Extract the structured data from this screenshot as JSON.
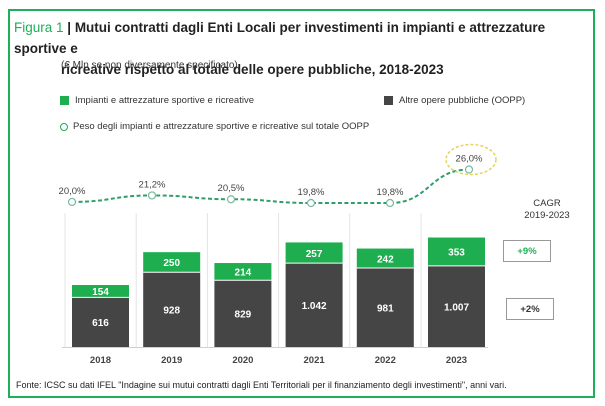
{
  "figure": {
    "label": "Figura 1",
    "title_line1": "Mutui contratti dagli Enti Locali per investimenti in impianti e attrezzature sportive e",
    "title_line2": "ricreative rispetto al totale delle opere pubbliche, 2018-2023",
    "subtitle": "(€ Mln se non diversamente specificato)",
    "source": "Fonte: ICSC su dati IFEL \"Indagine sui mutui contratti dagli Enti Territoriali per il finanziamento degli investimenti\", anni vari."
  },
  "legend": [
    {
      "label": "Impianti e attrezzature sportive e ricreative",
      "color": "#1fae4f",
      "shape": "square"
    },
    {
      "label": "Altre opere pubbliche (OOPP)",
      "color": "#454545",
      "shape": "square"
    },
    {
      "label": "Peso degli impianti e attrezzature sportive e ricreative sul totale OOPP",
      "color": "#1fae5a",
      "shape": "circle"
    }
  ],
  "cagr": {
    "title_line1": "CAGR",
    "title_line2": "2019-2023",
    "sport": {
      "value": "+9%",
      "color": "#1fae5a"
    },
    "other": {
      "value": "+2%",
      "color": "#333333"
    }
  },
  "chart_data": {
    "type": "bar",
    "stacked": true,
    "title": "Mutui contratti dagli Enti Locali per investimenti in impianti e attrezzature sportive e ricreative rispetto al totale delle opere pubbliche, 2018-2023",
    "categories": [
      "2018",
      "2019",
      "2020",
      "2021",
      "2022",
      "2023"
    ],
    "series": [
      {
        "name": "Altre opere pubbliche (OOPP)",
        "color": "#454545",
        "values": [
          616,
          928,
          829,
          1042,
          981,
          1007
        ],
        "labels": [
          "616",
          "928",
          "829",
          "1.042",
          "981",
          "1.007"
        ]
      },
      {
        "name": "Impianti e attrezzature sportive e ricreative",
        "color": "#1fae4f",
        "values": [
          154,
          250,
          214,
          257,
          242,
          353
        ],
        "labels": [
          "154",
          "250",
          "214",
          "257",
          "242",
          "353"
        ]
      }
    ],
    "line_series": {
      "name": "Peso degli impianti e attrezzature sportive e ricreative sul totale OOPP",
      "type": "line",
      "style": "dashed",
      "color": "#2e9e6a",
      "values": [
        20.0,
        21.2,
        20.5,
        19.8,
        19.8,
        26.0
      ],
      "labels": [
        "20,0%",
        "21,2%",
        "20,5%",
        "19,8%",
        "19,8%",
        "26,0%"
      ],
      "highlight_index": 5
    },
    "xlabel": "",
    "ylabel": "€ Mln",
    "ylim": [
      0,
      1400
    ],
    "grid": false
  }
}
